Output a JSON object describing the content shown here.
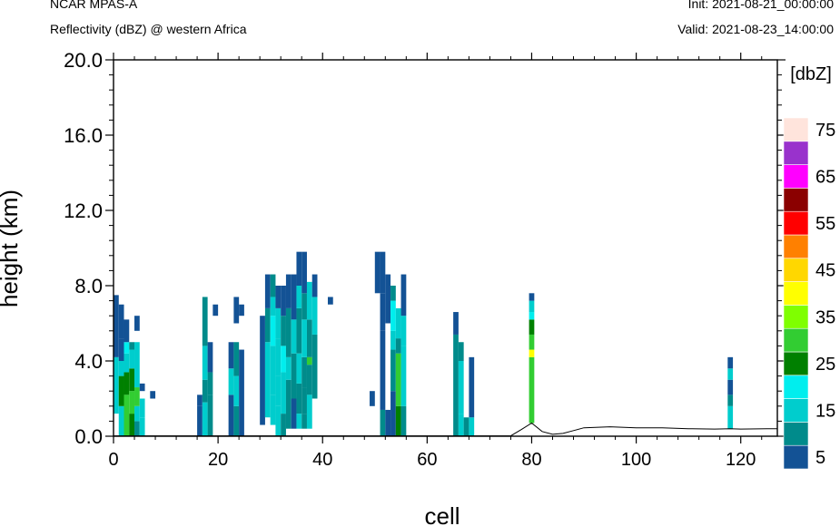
{
  "header": {
    "left_line1": "NCAR MPAS-A",
    "left_line2": "Reflectivity (dBZ) @ western Africa",
    "right_line1": "Init: 2021-08-21_00:00:00",
    "right_line2": "Valid: 2021-08-23_14:00:00"
  },
  "chart_data": {
    "type": "heatmap",
    "title": "Reflectivity (dBZ) @ western Africa",
    "xlabel": "cell",
    "ylabel": "height (km)",
    "xlim": [
      0,
      127
    ],
    "ylim": [
      0,
      20
    ],
    "xticks": [
      "0",
      "20",
      "40",
      "60",
      "80",
      "100",
      "120"
    ],
    "yticks": [
      "0.0",
      "4.0",
      "8.0",
      "12.0",
      "16.0",
      "20.0"
    ],
    "colorbar": {
      "unit_label": "[dbZ]",
      "levels": [
        5,
        10,
        15,
        20,
        25,
        30,
        35,
        40,
        45,
        50,
        55,
        60,
        65,
        70,
        75
      ],
      "tick_labels": [
        "5",
        "15",
        "25",
        "35",
        "45",
        "55",
        "65",
        "75"
      ],
      "colors": [
        "#135295",
        "#008b8b",
        "#00cdcd",
        "#00eeee",
        "#008000",
        "#32cd32",
        "#7fff00",
        "#ffff00",
        "#ffd700",
        "#ff8000",
        "#ff0000",
        "#8b0000",
        "#ff00ff",
        "#9932cc",
        "#ffe4dc"
      ]
    },
    "columns": [
      {
        "x": 0.5,
        "cells": [
          [
            1.2,
            4.2,
            15
          ],
          [
            4.2,
            7.5,
            5
          ]
        ]
      },
      {
        "x": 1.5,
        "cells": [
          [
            0,
            1.6,
            15
          ],
          [
            1.6,
            3.2,
            25
          ],
          [
            3.2,
            4.0,
            15
          ],
          [
            4.0,
            5.2,
            5
          ],
          [
            5.2,
            7.0,
            5
          ]
        ]
      },
      {
        "x": 2.5,
        "cells": [
          [
            0,
            2.2,
            30
          ],
          [
            2.2,
            3.4,
            25
          ],
          [
            3.4,
            4.4,
            15
          ],
          [
            4.4,
            5.0,
            20
          ],
          [
            5.0,
            6.2,
            5
          ]
        ]
      },
      {
        "x": 3.5,
        "cells": [
          [
            0,
            1.2,
            25
          ],
          [
            1.2,
            2.4,
            30
          ],
          [
            2.4,
            3.6,
            25
          ],
          [
            3.6,
            4.6,
            15
          ],
          [
            4.6,
            5.0,
            10
          ]
        ]
      },
      {
        "x": 4.5,
        "cells": [
          [
            0,
            0.8,
            10
          ],
          [
            0.8,
            1.6,
            15
          ],
          [
            1.6,
            2.6,
            30
          ],
          [
            2.6,
            4.0,
            15
          ],
          [
            4.0,
            5.0,
            15
          ],
          [
            5.6,
            6.4,
            5
          ]
        ]
      },
      {
        "x": 5.5,
        "cells": [
          [
            0,
            1.0,
            15
          ],
          [
            1.0,
            2.0,
            15
          ],
          [
            2.4,
            2.8,
            5
          ]
        ]
      },
      {
        "x": 7.5,
        "cells": [
          [
            2.0,
            2.4,
            5
          ]
        ]
      },
      {
        "x": 16.5,
        "cells": [
          [
            0,
            1.6,
            5
          ],
          [
            1.6,
            2.2,
            5
          ]
        ]
      },
      {
        "x": 17.5,
        "cells": [
          [
            0,
            1.8,
            15
          ],
          [
            1.8,
            3.0,
            10
          ],
          [
            3.0,
            4.8,
            15
          ],
          [
            4.8,
            7.4,
            10
          ]
        ]
      },
      {
        "x": 18.5,
        "cells": [
          [
            0,
            2.2,
            10
          ],
          [
            2.2,
            3.4,
            10
          ],
          [
            3.4,
            5.0,
            5
          ]
        ]
      },
      {
        "x": 19.5,
        "cells": [
          [
            6.4,
            7.0,
            5
          ]
        ]
      },
      {
        "x": 22.5,
        "cells": [
          [
            0,
            2.2,
            5
          ],
          [
            2.2,
            3.6,
            15
          ],
          [
            3.6,
            5.0,
            5
          ]
        ]
      },
      {
        "x": 23.5,
        "cells": [
          [
            0,
            1.6,
            10
          ],
          [
            1.6,
            3.2,
            15
          ],
          [
            3.2,
            5.0,
            10
          ],
          [
            6.0,
            7.4,
            5
          ]
        ]
      },
      {
        "x": 24.5,
        "cells": [
          [
            0,
            4.6,
            5
          ],
          [
            6.4,
            7.0,
            5
          ]
        ]
      },
      {
        "x": 28.5,
        "cells": [
          [
            0.6,
            6.4,
            5
          ]
        ]
      },
      {
        "x": 29.5,
        "cells": [
          [
            1.0,
            5.0,
            15
          ],
          [
            5.0,
            6.8,
            10
          ],
          [
            6.8,
            8.6,
            5
          ]
        ]
      },
      {
        "x": 30.5,
        "cells": [
          [
            0.6,
            2.2,
            15
          ],
          [
            2.2,
            4.8,
            15
          ],
          [
            4.8,
            6.4,
            20
          ],
          [
            6.4,
            7.4,
            15
          ],
          [
            7.4,
            8.6,
            10
          ]
        ]
      },
      {
        "x": 31.5,
        "cells": [
          [
            0,
            1.6,
            15
          ],
          [
            1.6,
            3.2,
            15
          ],
          [
            3.2,
            5.2,
            15
          ],
          [
            5.2,
            6.8,
            15
          ],
          [
            6.8,
            8.0,
            5
          ]
        ]
      },
      {
        "x": 32.5,
        "cells": [
          [
            0,
            1.2,
            10
          ],
          [
            1.2,
            3.4,
            15
          ],
          [
            3.4,
            4.8,
            20
          ],
          [
            4.8,
            6.4,
            10
          ],
          [
            6.4,
            8.0,
            5
          ]
        ]
      },
      {
        "x": 33.5,
        "cells": [
          [
            0.4,
            3.0,
            10
          ],
          [
            3.0,
            4.2,
            15
          ],
          [
            4.2,
            6.8,
            10
          ],
          [
            6.8,
            8.6,
            5
          ]
        ]
      },
      {
        "x": 34.5,
        "cells": [
          [
            0.4,
            2.0,
            5
          ],
          [
            2.0,
            4.4,
            10
          ],
          [
            4.4,
            6.2,
            15
          ],
          [
            6.2,
            8.6,
            5
          ]
        ]
      },
      {
        "x": 35.5,
        "cells": [
          [
            0.4,
            1.2,
            15
          ],
          [
            1.2,
            2.8,
            10
          ],
          [
            2.8,
            4.4,
            15
          ],
          [
            4.4,
            6.8,
            10
          ],
          [
            6.8,
            8.0,
            15
          ],
          [
            8.0,
            9.8,
            5
          ]
        ]
      },
      {
        "x": 36.5,
        "cells": [
          [
            0.4,
            1.2,
            10
          ],
          [
            1.2,
            2.6,
            10
          ],
          [
            2.6,
            4.2,
            10
          ],
          [
            4.2,
            6.2,
            15
          ],
          [
            6.2,
            7.6,
            10
          ],
          [
            7.6,
            9.8,
            5
          ]
        ]
      },
      {
        "x": 37.5,
        "cells": [
          [
            0.4,
            2.2,
            15
          ],
          [
            2.2,
            3.8,
            10
          ],
          [
            3.8,
            4.2,
            30
          ],
          [
            4.2,
            6.2,
            10
          ],
          [
            6.2,
            8.2,
            15
          ]
        ]
      },
      {
        "x": 38.5,
        "cells": [
          [
            2.0,
            5.4,
            10
          ],
          [
            5.4,
            7.4,
            15
          ],
          [
            7.4,
            8.6,
            5
          ]
        ]
      },
      {
        "x": 41.5,
        "cells": [
          [
            7.0,
            7.4,
            5
          ]
        ]
      },
      {
        "x": 49.5,
        "cells": [
          [
            1.6,
            2.4,
            5
          ]
        ]
      },
      {
        "x": 50.5,
        "cells": [
          [
            7.6,
            9.8,
            5
          ]
        ]
      },
      {
        "x": 51.5,
        "cells": [
          [
            0,
            1.4,
            10
          ],
          [
            1.4,
            5.6,
            5
          ],
          [
            5.6,
            7.6,
            5
          ],
          [
            7.6,
            9.8,
            5
          ]
        ]
      },
      {
        "x": 52.5,
        "cells": [
          [
            0,
            1.4,
            5
          ],
          [
            6.0,
            8.6,
            5
          ]
        ]
      },
      {
        "x": 53.5,
        "cells": [
          [
            0,
            2.4,
            5
          ],
          [
            2.4,
            4.6,
            10
          ],
          [
            4.6,
            5.6,
            15
          ],
          [
            5.6,
            7.2,
            20
          ],
          [
            7.2,
            8.0,
            10
          ]
        ]
      },
      {
        "x": 54.5,
        "cells": [
          [
            0,
            1.6,
            25
          ],
          [
            1.6,
            4.4,
            30
          ],
          [
            4.4,
            5.2,
            10
          ],
          [
            5.2,
            6.8,
            15
          ]
        ]
      },
      {
        "x": 55.5,
        "cells": [
          [
            0,
            1.6,
            10
          ],
          [
            1.6,
            4.8,
            15
          ],
          [
            4.8,
            6.4,
            15
          ],
          [
            6.4,
            8.6,
            5
          ]
        ]
      },
      {
        "x": 65.5,
        "cells": [
          [
            0,
            5.4,
            10
          ],
          [
            5.4,
            6.6,
            5
          ]
        ]
      },
      {
        "x": 66.5,
        "cells": [
          [
            0,
            1.2,
            15
          ],
          [
            1.2,
            4.0,
            15
          ],
          [
            4.0,
            5.0,
            10
          ]
        ]
      },
      {
        "x": 67.5,
        "cells": [
          [
            0,
            1.0,
            10
          ]
        ]
      },
      {
        "x": 68.5,
        "cells": [
          [
            0,
            1.0,
            15
          ],
          [
            1.0,
            4.2,
            5
          ]
        ]
      },
      {
        "x": 80.0,
        "cells": [
          [
            0.7,
            4.2,
            30
          ],
          [
            4.2,
            4.6,
            40
          ],
          [
            4.6,
            5.4,
            30
          ],
          [
            5.4,
            6.2,
            25
          ],
          [
            6.2,
            6.6,
            20
          ],
          [
            6.6,
            7.2,
            15
          ],
          [
            7.2,
            7.6,
            5
          ]
        ]
      },
      {
        "x": 118.0,
        "cells": [
          [
            0.4,
            1.6,
            15
          ],
          [
            1.6,
            2.2,
            10
          ],
          [
            2.2,
            3.0,
            5
          ],
          [
            3.0,
            3.6,
            15
          ],
          [
            3.6,
            4.2,
            5
          ]
        ]
      }
    ],
    "terrain": [
      [
        0,
        0.02
      ],
      [
        20,
        0.02
      ],
      [
        40,
        0.02
      ],
      [
        60,
        0.02
      ],
      [
        76,
        0.02
      ],
      [
        78,
        0.35
      ],
      [
        80,
        0.7
      ],
      [
        82,
        0.25
      ],
      [
        84,
        0.1
      ],
      [
        86,
        0.15
      ],
      [
        88,
        0.3
      ],
      [
        90,
        0.45
      ],
      [
        95,
        0.5
      ],
      [
        100,
        0.45
      ],
      [
        105,
        0.45
      ],
      [
        110,
        0.4
      ],
      [
        115,
        0.38
      ],
      [
        118,
        0.4
      ],
      [
        120,
        0.38
      ],
      [
        125,
        0.4
      ],
      [
        127,
        0.4
      ]
    ]
  }
}
